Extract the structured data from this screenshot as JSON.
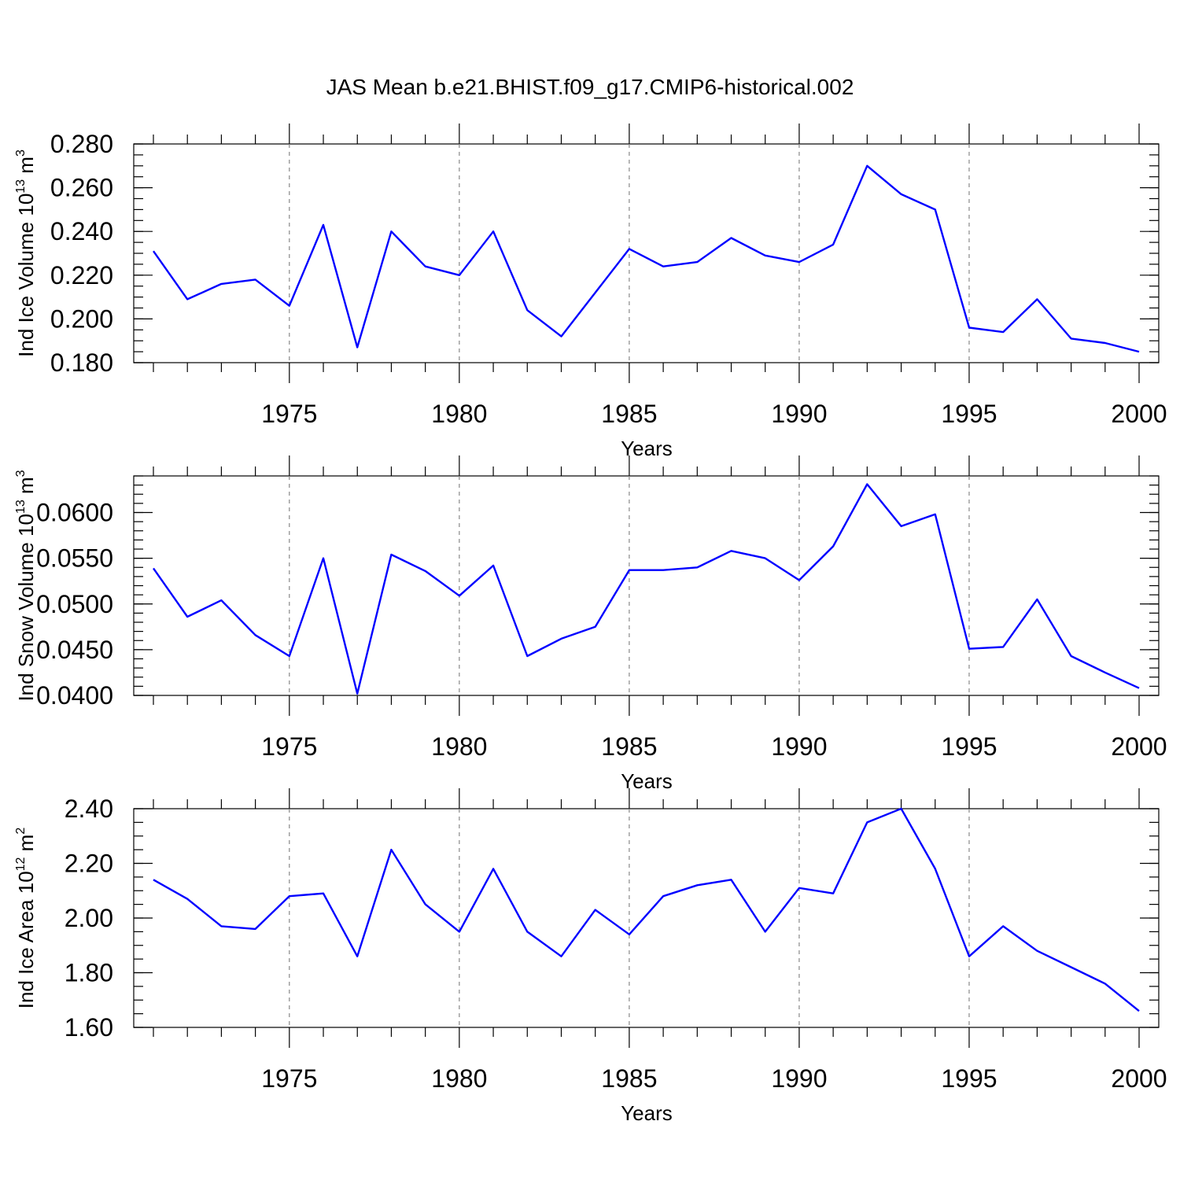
{
  "title": "JAS Mean b.e21.BHIST.f09_g17.CMIP6-historical.002",
  "colors": {
    "series": "#0000ff",
    "grid": "#888888"
  },
  "chart_data": [
    {
      "type": "line",
      "x": [
        1971,
        1972,
        1973,
        1974,
        1975,
        1976,
        1977,
        1978,
        1979,
        1980,
        1981,
        1982,
        1983,
        1984,
        1985,
        1986,
        1987,
        1988,
        1989,
        1990,
        1991,
        1992,
        1993,
        1994,
        1995,
        1996,
        1997,
        1998,
        1999,
        2000
      ],
      "values": [
        0.231,
        0.209,
        0.216,
        0.218,
        0.206,
        0.243,
        0.187,
        0.24,
        0.224,
        0.22,
        0.24,
        0.204,
        0.192,
        0.212,
        0.232,
        0.224,
        0.226,
        0.237,
        0.229,
        0.226,
        0.234,
        0.27,
        0.257,
        0.25,
        0.196,
        0.194,
        0.209,
        0.191,
        0.189,
        0.185
      ],
      "xlabel": "Years",
      "ylabel_main": "Ind Ice Volume 10",
      "ylabel_exp": "13",
      "ylabel_unit": " m",
      "ylabel_unit_exp": "3",
      "xlim": [
        1971,
        2000
      ],
      "ylim": [
        0.18,
        0.28
      ],
      "yticks": [
        0.18,
        0.2,
        0.22,
        0.24,
        0.26,
        0.28
      ],
      "ytick_labels": [
        "0.180",
        "0.200",
        "0.220",
        "0.240",
        "0.260",
        "0.280"
      ],
      "xticks": [
        1975,
        1980,
        1985,
        1990,
        1995,
        2000
      ],
      "xtick_labels": [
        "1975",
        "1980",
        "1985",
        "1990",
        "1995",
        "2000"
      ],
      "grid": "dashed vertical at 5-year ticks"
    },
    {
      "type": "line",
      "x": [
        1971,
        1972,
        1973,
        1974,
        1975,
        1976,
        1977,
        1978,
        1979,
        1980,
        1981,
        1982,
        1983,
        1984,
        1985,
        1986,
        1987,
        1988,
        1989,
        1990,
        1991,
        1992,
        1993,
        1994,
        1995,
        1996,
        1997,
        1998,
        1999,
        2000
      ],
      "values": [
        0.0539,
        0.0486,
        0.0504,
        0.0466,
        0.0443,
        0.055,
        0.0402,
        0.0554,
        0.0536,
        0.0509,
        0.0542,
        0.0443,
        0.0462,
        0.0475,
        0.0537,
        0.0537,
        0.054,
        0.0558,
        0.055,
        0.0526,
        0.0563,
        0.0631,
        0.0585,
        0.0598,
        0.0451,
        0.0453,
        0.0505,
        0.0443,
        0.0425,
        0.0408
      ],
      "xlabel": "Years",
      "ylabel_main": "Ind Snow Volume 10",
      "ylabel_exp": "13",
      "ylabel_unit": " m",
      "ylabel_unit_exp": "3",
      "xlim": [
        1971,
        2000
      ],
      "ylim": [
        0.04,
        0.064
      ],
      "yticks": [
        0.04,
        0.045,
        0.05,
        0.055,
        0.06
      ],
      "ytick_labels": [
        "0.0400",
        "0.0450",
        "0.0500",
        "0.0550",
        "0.0600"
      ],
      "xticks": [
        1975,
        1980,
        1985,
        1990,
        1995,
        2000
      ],
      "xtick_labels": [
        "1975",
        "1980",
        "1985",
        "1990",
        "1995",
        "2000"
      ],
      "grid": "dashed vertical at 5-year ticks"
    },
    {
      "type": "line",
      "x": [
        1971,
        1972,
        1973,
        1974,
        1975,
        1976,
        1977,
        1978,
        1979,
        1980,
        1981,
        1982,
        1983,
        1984,
        1985,
        1986,
        1987,
        1988,
        1989,
        1990,
        1991,
        1992,
        1993,
        1994,
        1995,
        1996,
        1997,
        1998,
        1999,
        2000
      ],
      "values": [
        2.14,
        2.07,
        1.97,
        1.96,
        2.08,
        2.09,
        1.86,
        2.25,
        2.05,
        1.95,
        2.18,
        1.95,
        1.86,
        2.03,
        1.94,
        2.08,
        2.12,
        2.14,
        1.95,
        2.11,
        2.09,
        2.35,
        2.4,
        2.18,
        1.86,
        1.97,
        1.88,
        1.82,
        1.76,
        1.66
      ],
      "xlabel": "Years",
      "ylabel_main": "Ind Ice Area 10",
      "ylabel_exp": "12",
      "ylabel_unit": " m",
      "ylabel_unit_exp": "2",
      "xlim": [
        1971,
        2000
      ],
      "ylim": [
        1.6,
        2.4
      ],
      "yticks": [
        1.6,
        1.8,
        2.0,
        2.2,
        2.4
      ],
      "ytick_labels": [
        "1.60",
        "1.80",
        "2.00",
        "2.20",
        "2.40"
      ],
      "xticks": [
        1975,
        1980,
        1985,
        1990,
        1995,
        2000
      ],
      "xtick_labels": [
        "1975",
        "1980",
        "1985",
        "1990",
        "1995",
        "2000"
      ],
      "grid": "dashed vertical at 5-year ticks"
    }
  ]
}
